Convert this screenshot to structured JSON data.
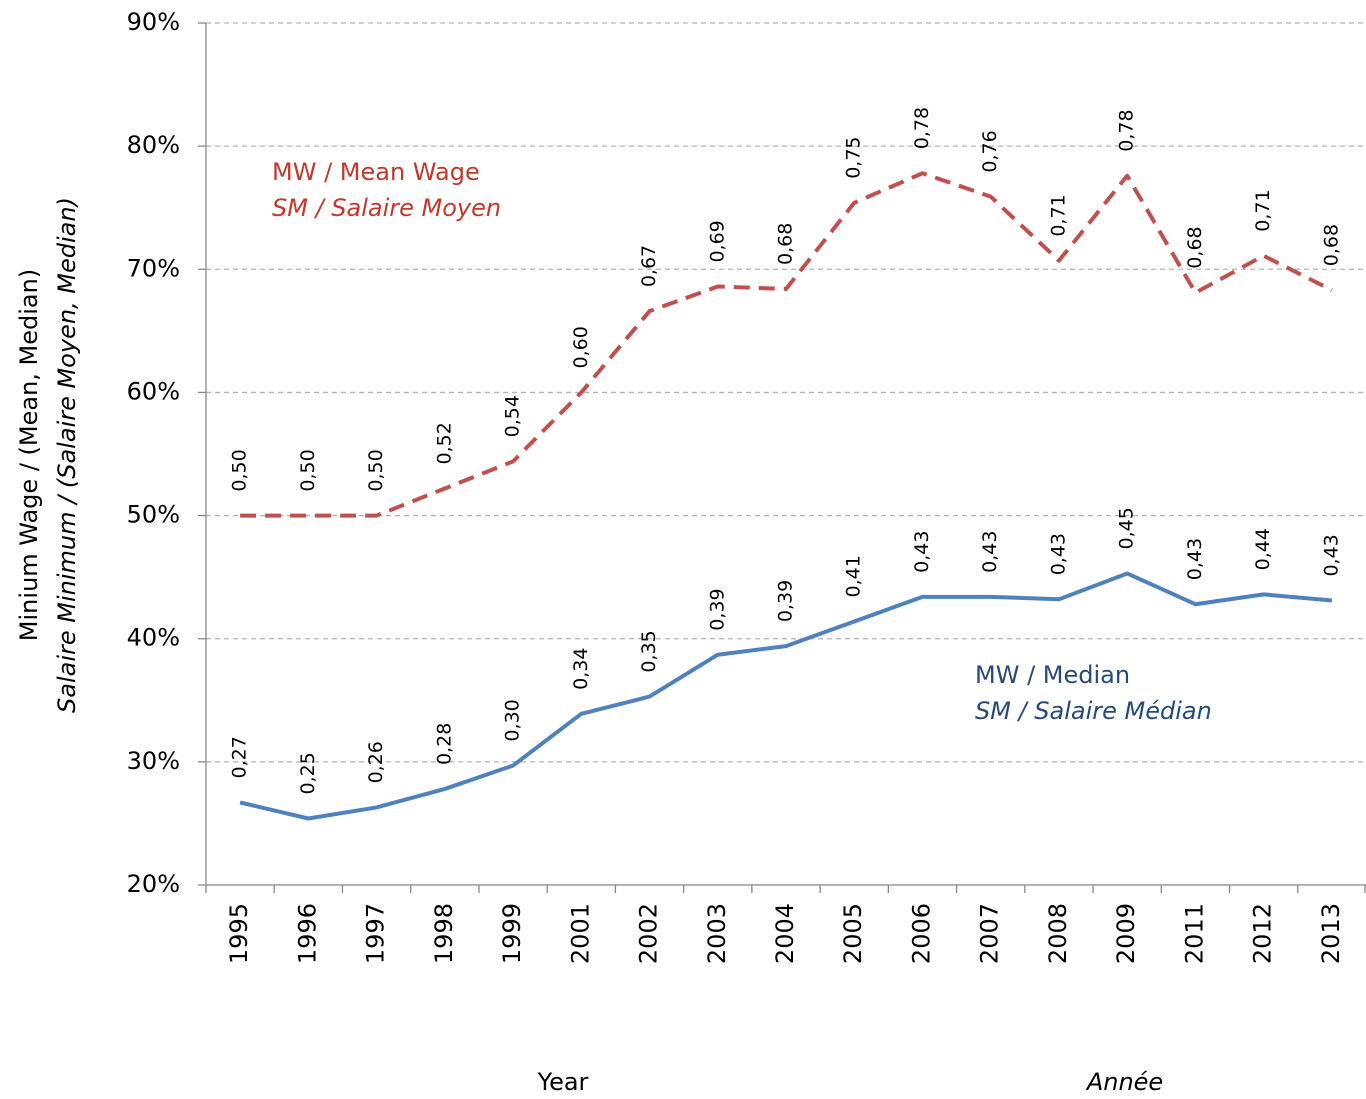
{
  "chart_data": {
    "type": "line",
    "ylabel": "Minium Wage / (Mean, Median)",
    "ylabel_fr": "Salaire Minimum / (Salaire Moyen, Median)",
    "xlabel": "Year",
    "xlabel_fr": "Année",
    "categories": [
      "1995",
      "1996",
      "1997",
      "1998",
      "1999",
      "2001",
      "2002",
      "2003",
      "2004",
      "2005",
      "2006",
      "2007",
      "2008",
      "2009",
      "2011",
      "2012",
      "2013"
    ],
    "ylim": [
      20,
      90
    ],
    "yticks": [
      {
        "value": 20,
        "label": "20%"
      },
      {
        "value": 30,
        "label": "30%"
      },
      {
        "value": 40,
        "label": "40%"
      },
      {
        "value": 50,
        "label": "50%"
      },
      {
        "value": 60,
        "label": "60%"
      },
      {
        "value": 70,
        "label": "70%"
      },
      {
        "value": 80,
        "label": "80%"
      },
      {
        "value": 90,
        "label": "90%"
      }
    ],
    "grid": true,
    "series": [
      {
        "name": "MW / Mean Wage",
        "name_fr": "SM / Salaire Moyen",
        "color": "#c0504d",
        "dashed": true,
        "values": [
          50,
          50,
          50,
          52.2,
          54.4,
          60.0,
          66.6,
          68.6,
          68.4,
          75.4,
          77.8,
          75.9,
          70.7,
          77.6,
          68.1,
          71.1,
          68.3
        ],
        "value_labels": [
          "0,50",
          "0,50",
          "0,50",
          "0,52",
          "0,54",
          "0,60",
          "0,67",
          "0,69",
          "0,68",
          "0,75",
          "0,78",
          "0,76",
          "0,71",
          "0,78",
          "0,68",
          "0,71",
          "0,68"
        ]
      },
      {
        "name": "MW / Median",
        "name_fr": "SM / Salaire Médian",
        "color": "#4f81bd",
        "dashed": false,
        "values": [
          26.7,
          25.4,
          26.3,
          27.8,
          29.7,
          33.9,
          35.3,
          38.7,
          39.4,
          41.4,
          43.4,
          43.4,
          43.2,
          45.3,
          42.8,
          43.6,
          43.1
        ],
        "value_labels": [
          "0,27",
          "0,25",
          "0,26",
          "0,28",
          "0,30",
          "0,34",
          "0,35",
          "0,39",
          "0,39",
          "0,41",
          "0,43",
          "0,43",
          "0,43",
          "0,45",
          "0,43",
          "0,44",
          "0,43"
        ]
      }
    ]
  }
}
